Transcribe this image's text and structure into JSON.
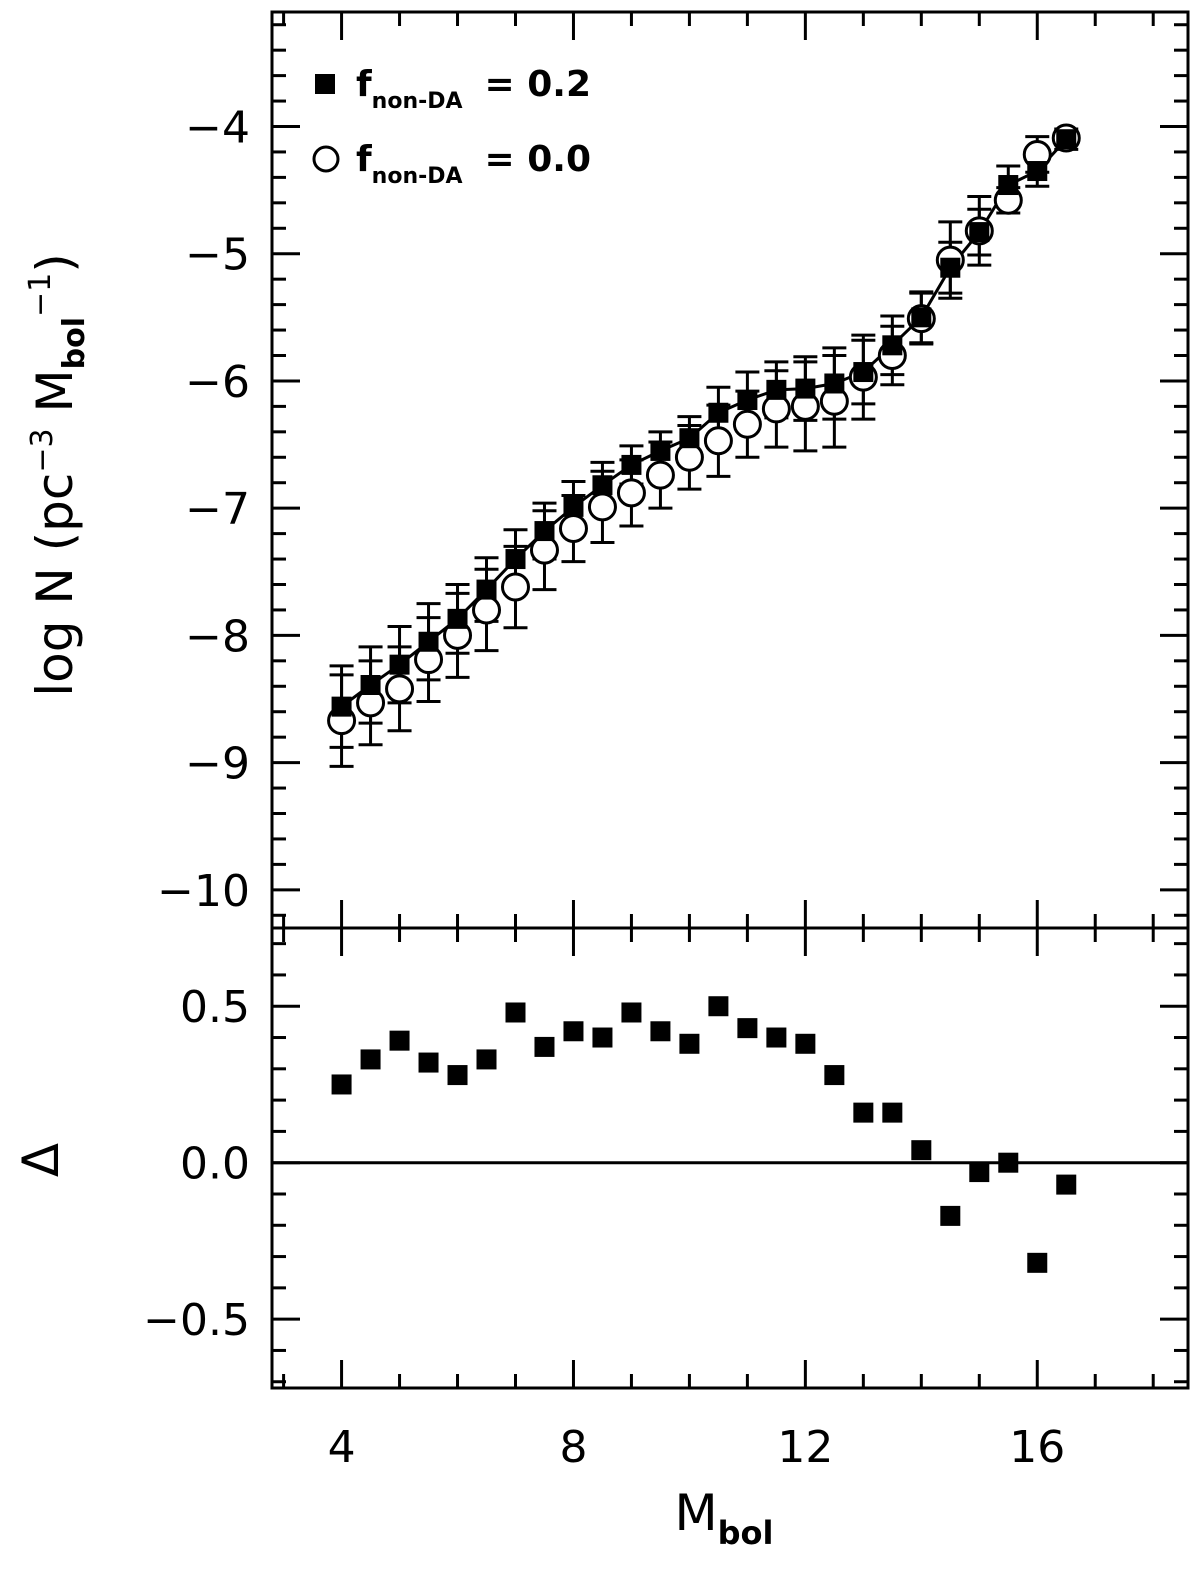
{
  "chart_data": [
    {
      "type": "scatter",
      "panel": "top",
      "xlim": [
        2.8,
        18.6
      ],
      "ylim": [
        -10.3,
        -3.1
      ],
      "x_ticks": [
        4,
        8,
        12,
        16
      ],
      "y_ticks": [
        -10,
        -9,
        -8,
        -7,
        -6,
        -5,
        -4
      ],
      "y_tick_labels": [
        "−10",
        "−9",
        "−8",
        "−7",
        "−6",
        "−5",
        "−4"
      ],
      "ylabel": {
        "main": "log N (pc",
        "sup1": "−3",
        "mid": " M",
        "sub": "bol",
        "sup2": "−1",
        "end": ")"
      },
      "grid": false,
      "legend_placement": "top-left",
      "series": [
        {
          "name": {
            "main": "f",
            "sub": "non-DA",
            "value": "= 0.2"
          },
          "marker": "filled-square",
          "connected": true,
          "x": [
            4.0,
            4.5,
            5.0,
            5.5,
            6.0,
            6.5,
            7.0,
            7.5,
            8.0,
            8.5,
            9.0,
            9.5,
            10.0,
            10.5,
            11.0,
            11.5,
            12.0,
            12.5,
            13.0,
            13.5,
            14.0,
            14.5,
            15.0,
            15.5,
            16.0,
            16.5
          ],
          "y": [
            -8.56,
            -8.39,
            -8.23,
            -8.05,
            -7.87,
            -7.64,
            -7.4,
            -7.18,
            -6.99,
            -6.82,
            -6.66,
            -6.55,
            -6.45,
            -6.25,
            -6.15,
            -6.07,
            -6.06,
            -6.02,
            -5.93,
            -5.72,
            -5.5,
            -5.11,
            -4.83,
            -4.46,
            -4.35,
            -4.1
          ],
          "yerr": [
            0.32,
            0.3,
            0.3,
            0.3,
            0.27,
            0.25,
            0.23,
            0.22,
            0.2,
            0.18,
            0.15,
            0.15,
            0.17,
            0.2,
            0.22,
            0.22,
            0.25,
            0.28,
            0.25,
            0.23,
            0.2,
            0.2,
            0.18,
            0.15,
            0.12,
            0.08
          ]
        },
        {
          "name": {
            "main": "f",
            "sub": "non-DA",
            "value": "= 0.0"
          },
          "marker": "open-circle",
          "connected": false,
          "x": [
            4.0,
            4.5,
            5.0,
            5.5,
            6.0,
            6.5,
            7.0,
            7.5,
            8.0,
            8.5,
            9.0,
            9.5,
            10.0,
            10.5,
            11.0,
            11.5,
            12.0,
            12.5,
            13.0,
            13.5,
            14.0,
            14.5,
            15.0,
            15.5,
            16.0,
            16.5
          ],
          "y": [
            -8.67,
            -8.53,
            -8.42,
            -8.19,
            -8.0,
            -7.8,
            -7.62,
            -7.33,
            -7.16,
            -6.99,
            -6.88,
            -6.74,
            -6.6,
            -6.47,
            -6.34,
            -6.22,
            -6.2,
            -6.16,
            -5.97,
            -5.8,
            -5.51,
            -5.05,
            -4.82,
            -4.58,
            -4.22,
            -4.09
          ],
          "yerr": [
            0.36,
            0.33,
            0.33,
            0.33,
            0.33,
            0.32,
            0.32,
            0.31,
            0.26,
            0.28,
            0.26,
            0.26,
            0.25,
            0.28,
            0.26,
            0.3,
            0.35,
            0.36,
            0.33,
            0.23,
            0.2,
            0.3,
            0.27,
            0.1,
            0.14,
            0.05
          ]
        }
      ]
    },
    {
      "type": "scatter",
      "panel": "bottom",
      "xlim": [
        2.8,
        18.6
      ],
      "ylim": [
        -0.72,
        0.75
      ],
      "x_ticks": [
        4,
        8,
        12,
        16
      ],
      "x_tick_labels": [
        "4",
        "8",
        "12",
        "16"
      ],
      "y_ticks": [
        -0.5,
        0.0,
        0.5
      ],
      "y_tick_labels": [
        "−0.5",
        "0.0",
        "0.5"
      ],
      "xlabel": {
        "main": "M",
        "sub": "bol"
      },
      "ylabel": "Δ",
      "reference_line": 0.0,
      "series": [
        {
          "marker": "filled-square",
          "x": [
            4.0,
            4.5,
            5.0,
            5.5,
            6.0,
            6.5,
            7.0,
            7.5,
            8.0,
            8.5,
            9.0,
            9.5,
            10.0,
            10.5,
            11.0,
            11.5,
            12.0,
            12.5,
            13.0,
            13.5,
            14.0,
            14.5,
            15.0,
            15.5,
            16.0,
            16.5
          ],
          "y": [
            0.25,
            0.33,
            0.39,
            0.32,
            0.28,
            0.33,
            0.48,
            0.37,
            0.42,
            0.4,
            0.48,
            0.42,
            0.38,
            0.5,
            0.43,
            0.4,
            0.38,
            0.28,
            0.16,
            0.16,
            0.04,
            -0.17,
            -0.03,
            0.0,
            -0.32,
            -0.07
          ]
        }
      ]
    }
  ]
}
